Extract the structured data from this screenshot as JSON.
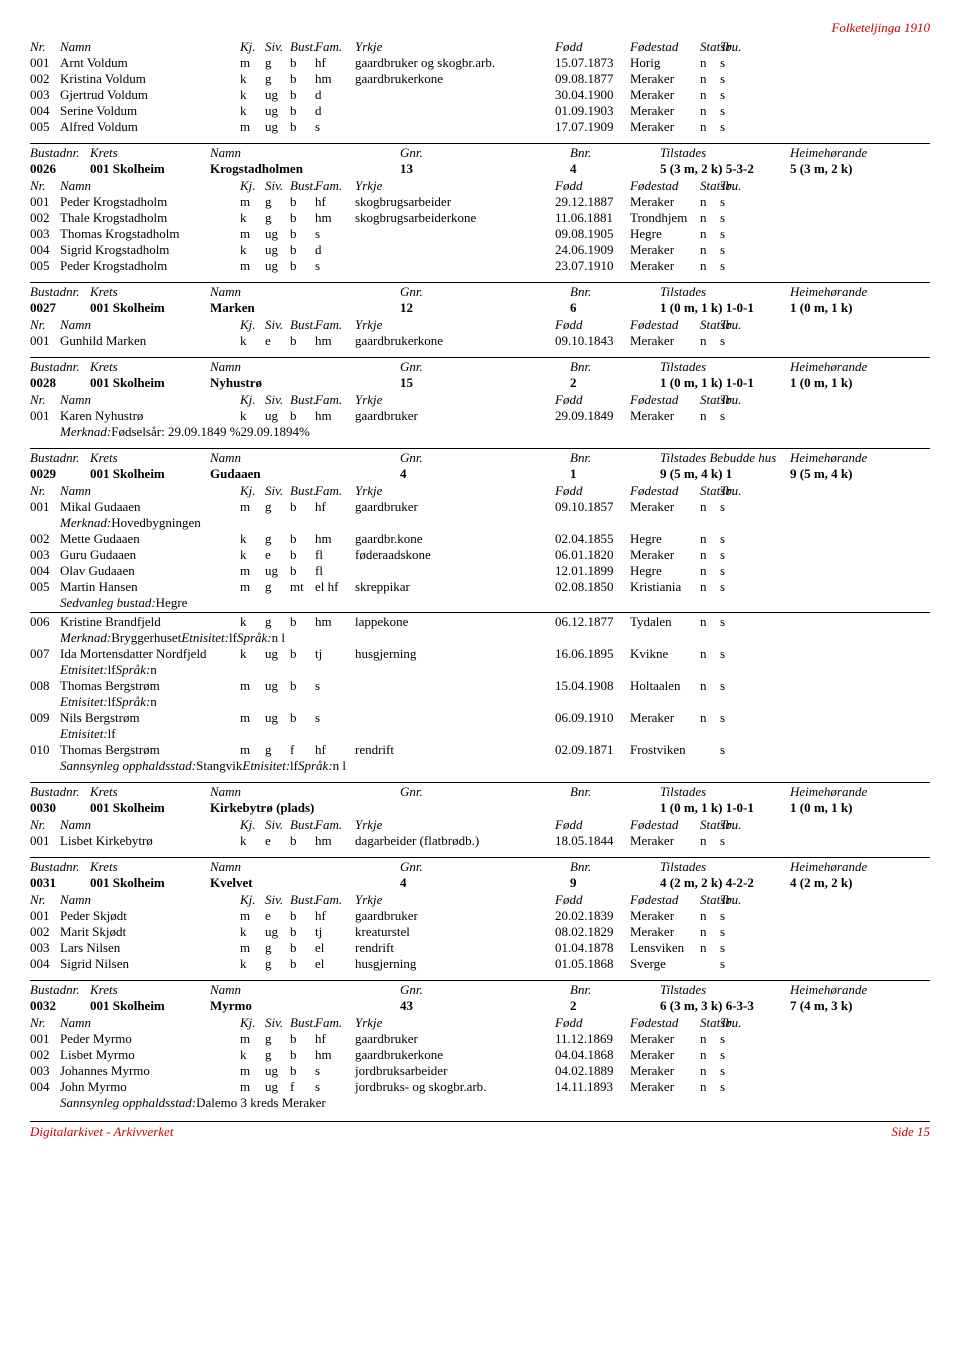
{
  "header_right": "Folketeljinga 1910",
  "footer_left": "Digitalarkivet - Arkivverket",
  "footer_right": "Side 15",
  "person_header": {
    "nr": "Nr.",
    "namn": "Namn",
    "kj": "Kj.",
    "siv": "Siv.",
    "bust": "Bust.",
    "fam": "Fam.",
    "yrkje": "Yrkje",
    "fodd": "Fødd",
    "fodestad": "Fødestad",
    "statsb": "Statsb.",
    "tru": "Tru."
  },
  "bustad_header": {
    "bust": "Bustadnr.",
    "krets": "Krets",
    "namn": "Namn",
    "gnr": "Gnr.",
    "bnr": "Bnr.",
    "til": "Tilstades",
    "til_extra": "Tilstades Bebudde hus",
    "heim": "Heimehørande"
  },
  "top_rows": [
    {
      "nr": "001",
      "namn": "Arnt Voldum",
      "kj": "m",
      "siv": "g",
      "bust": "b",
      "fam": "hf",
      "yrkje": "gaardbruker og skogbr.arb.",
      "fodd": "15.07.1873",
      "fodestad": "Horig",
      "statsb": "n",
      "tru": "s"
    },
    {
      "nr": "002",
      "namn": "Kristina Voldum",
      "kj": "k",
      "siv": "g",
      "bust": "b",
      "fam": "hm",
      "yrkje": "gaardbrukerkone",
      "fodd": "09.08.1877",
      "fodestad": "Meraker",
      "statsb": "n",
      "tru": "s"
    },
    {
      "nr": "003",
      "namn": "Gjertrud Voldum",
      "kj": "k",
      "siv": "ug",
      "bust": "b",
      "fam": "d",
      "yrkje": "",
      "fodd": "30.04.1900",
      "fodestad": "Meraker",
      "statsb": "n",
      "tru": "s"
    },
    {
      "nr": "004",
      "namn": "Serine Voldum",
      "kj": "k",
      "siv": "ug",
      "bust": "b",
      "fam": "d",
      "yrkje": "",
      "fodd": "01.09.1903",
      "fodestad": "Meraker",
      "statsb": "n",
      "tru": "s"
    },
    {
      "nr": "005",
      "namn": "Alfred Voldum",
      "kj": "m",
      "siv": "ug",
      "bust": "b",
      "fam": "s",
      "yrkje": "",
      "fodd": "17.07.1909",
      "fodestad": "Meraker",
      "statsb": "n",
      "tru": "s"
    }
  ],
  "sections": [
    {
      "bustad": {
        "nr": "0026",
        "krets": "001 Skolheim",
        "namn": "Krogstadholmen",
        "gnr": "13",
        "bnr": "4",
        "til": "5 (3 m, 2 k) 5-3-2",
        "heim": "5 (3 m, 2 k)"
      },
      "rows": [
        {
          "nr": "001",
          "namn": "Peder Krogstadholm",
          "kj": "m",
          "siv": "g",
          "bust": "b",
          "fam": "hf",
          "yrkje": "skogbrugsarbeider",
          "fodd": "29.12.1887",
          "fodestad": "Meraker",
          "statsb": "n",
          "tru": "s"
        },
        {
          "nr": "002",
          "namn": "Thale Krogstadholm",
          "kj": "k",
          "siv": "g",
          "bust": "b",
          "fam": "hm",
          "yrkje": "skogbrugsarbeiderkone",
          "fodd": "11.06.1881",
          "fodestad": "Trondhjem",
          "statsb": "n",
          "tru": "s"
        },
        {
          "nr": "003",
          "namn": "Thomas Krogstadholm",
          "kj": "m",
          "siv": "ug",
          "bust": "b",
          "fam": "s",
          "yrkje": "",
          "fodd": "09.08.1905",
          "fodestad": "Hegre",
          "statsb": "n",
          "tru": "s"
        },
        {
          "nr": "004",
          "namn": "Sigrid Krogstadholm",
          "kj": "k",
          "siv": "ug",
          "bust": "b",
          "fam": "d",
          "yrkje": "",
          "fodd": "24.06.1909",
          "fodestad": "Meraker",
          "statsb": "n",
          "tru": "s"
        },
        {
          "nr": "005",
          "namn": "Peder Krogstadholm",
          "kj": "m",
          "siv": "ug",
          "bust": "b",
          "fam": "s",
          "yrkje": "",
          "fodd": "23.07.1910",
          "fodestad": "Meraker",
          "statsb": "n",
          "tru": "s"
        }
      ]
    },
    {
      "bustad": {
        "nr": "0027",
        "krets": "001 Skolheim",
        "namn": "Marken",
        "gnr": "12",
        "bnr": "6",
        "til": "1 (0 m, 1 k) 1-0-1",
        "heim": "1 (0 m, 1 k)"
      },
      "rows": [
        {
          "nr": "001",
          "namn": "Gunhild Marken",
          "kj": "k",
          "siv": "e",
          "bust": "b",
          "fam": "hm",
          "yrkje": "gaardbrukerkone",
          "fodd": "09.10.1843",
          "fodestad": "Meraker",
          "statsb": "n",
          "tru": "s"
        }
      ]
    },
    {
      "bustad": {
        "nr": "0028",
        "krets": "001 Skolheim",
        "namn": "Nyhustrø",
        "gnr": "15",
        "bnr": "2",
        "til": "1 (0 m, 1 k) 1-0-1",
        "heim": "1 (0 m, 1 k)"
      },
      "rows": [
        {
          "nr": "001",
          "namn": "Karen Nyhustrø",
          "kj": "k",
          "siv": "ug",
          "bust": "b",
          "fam": "hm",
          "yrkje": "gaardbruker",
          "fodd": "29.09.1849",
          "fodestad": "Meraker",
          "statsb": "n",
          "tru": "s",
          "note": {
            "lbl": "Merknad:",
            "txt": " Fødselsår: 29.09.1849 %29.09.1894%"
          }
        }
      ]
    },
    {
      "extra_header": true,
      "bustad": {
        "nr": "0029",
        "krets": "001 Skolheim",
        "namn": "Gudaaen",
        "gnr": "4",
        "bnr": "1",
        "til": "9 (5 m, 4 k) 1",
        "heim": "9 (5 m, 4 k)"
      },
      "rows": [
        {
          "nr": "001",
          "namn": "Mikal Gudaaen",
          "kj": "m",
          "siv": "g",
          "bust": "b",
          "fam": "hf",
          "yrkje": "gaardbruker",
          "fodd": "09.10.1857",
          "fodestad": "Meraker",
          "statsb": "n",
          "tru": "s",
          "note": {
            "lbl": "Merknad:",
            "txt": " Hovedbygningen"
          }
        },
        {
          "nr": "002",
          "namn": "Mette Gudaaen",
          "kj": "k",
          "siv": "g",
          "bust": "b",
          "fam": "hm",
          "yrkje": "gaardbr.kone",
          "fodd": "02.04.1855",
          "fodestad": "Hegre",
          "statsb": "n",
          "tru": "s"
        },
        {
          "nr": "003",
          "namn": "Guru Gudaaen",
          "kj": "k",
          "siv": "e",
          "bust": "b",
          "fam": "fl",
          "yrkje": "føderaadskone",
          "fodd": "06.01.1820",
          "fodestad": "Meraker",
          "statsb": "n",
          "tru": "s"
        },
        {
          "nr": "004",
          "namn": "Olav Gudaaen",
          "kj": "m",
          "siv": "ug",
          "bust": "b",
          "fam": "fl",
          "yrkje": "",
          "fodd": "12.01.1899",
          "fodestad": "Hegre",
          "statsb": "n",
          "tru": "s"
        },
        {
          "nr": "005",
          "namn": "Martin Hansen",
          "kj": "m",
          "siv": "g",
          "bust": "mt",
          "fam": "el hf",
          "yrkje": "skreppikar",
          "fodd": "02.08.1850",
          "fodestad": "Kristiania",
          "statsb": "n",
          "tru": "s",
          "note": {
            "lbl": "Sedvanleg bustad:",
            "txt": "  Hegre"
          },
          "sep_after": true
        },
        {
          "nr": "006",
          "namn": "Kristine Brandfjeld",
          "kj": "k",
          "siv": "g",
          "bust": "b",
          "fam": "hm",
          "yrkje": "lappekone",
          "fodd": "06.12.1877",
          "fodestad": "Tydalen",
          "statsb": "n",
          "tru": "s",
          "note": {
            "lbl": "Merknad:",
            "txt": " Bryggerhuset ",
            "lbl2": "Etnisitet:",
            "txt2": "  lf ",
            "lbl3": "Språk:",
            "txt3": "  n l"
          }
        },
        {
          "nr": "007",
          "namn": "Ida Mortensdatter Nordfjeld",
          "kj": "k",
          "siv": "ug",
          "bust": "b",
          "fam": "tj",
          "yrkje": "husgjerning",
          "fodd": "16.06.1895",
          "fodestad": "Kvikne",
          "statsb": "n",
          "tru": "s",
          "note": {
            "lbl": "Etnisitet:",
            "txt": "  lf ",
            "lbl2": "Språk:",
            "txt2": "  n"
          }
        },
        {
          "nr": "008",
          "namn": "Thomas Bergstrøm",
          "kj": "m",
          "siv": "ug",
          "bust": "b",
          "fam": "s",
          "yrkje": "",
          "fodd": "15.04.1908",
          "fodestad": "Holtaalen",
          "statsb": "n",
          "tru": "s",
          "note": {
            "lbl": "Etnisitet:",
            "txt": "  lf ",
            "lbl2": "Språk:",
            "txt2": "  n"
          }
        },
        {
          "nr": "009",
          "namn": "Nils Bergstrøm",
          "kj": "m",
          "siv": "ug",
          "bust": "b",
          "fam": "s",
          "yrkje": "",
          "fodd": "06.09.1910",
          "fodestad": "Meraker",
          "statsb": "n",
          "tru": "s",
          "note": {
            "lbl": "Etnisitet:",
            "txt": "  lf"
          }
        },
        {
          "nr": "010",
          "namn": "Thomas Bergstrøm",
          "kj": "m",
          "siv": "g",
          "bust": "f",
          "fam": "hf",
          "yrkje": "rendrift",
          "fodd": "02.09.1871",
          "fodestad": "Frostviken",
          "statsb": "",
          "tru": "s",
          "note": {
            "lbl": "Sannsynleg opphaldsstad:",
            "txt": " Stangvik ",
            "lbl2": "Etnisitet:",
            "txt2": "  lf ",
            "lbl3": "Språk:",
            "txt3": "  n l"
          }
        }
      ]
    },
    {
      "bustad": {
        "nr": "0030",
        "krets": "001 Skolheim",
        "namn": "Kirkebytrø (plads)",
        "gnr": "",
        "bnr": "",
        "til": "1 (0 m, 1 k) 1-0-1",
        "heim": "1 (0 m, 1 k)"
      },
      "rows": [
        {
          "nr": "001",
          "namn": "Lisbet Kirkebytrø",
          "kj": "k",
          "siv": "e",
          "bust": "b",
          "fam": "hm",
          "yrkje": "dagarbeider (flatbrødb.)",
          "fodd": "18.05.1844",
          "fodestad": "Meraker",
          "statsb": "n",
          "tru": "s"
        }
      ]
    },
    {
      "bustad": {
        "nr": "0031",
        "krets": "001 Skolheim",
        "namn": "Kvelvet",
        "gnr": "4",
        "bnr": "9",
        "til": "4 (2 m, 2 k) 4-2-2",
        "heim": "4 (2 m, 2 k)"
      },
      "rows": [
        {
          "nr": "001",
          "namn": "Peder Skjødt",
          "kj": "m",
          "siv": "e",
          "bust": "b",
          "fam": "hf",
          "yrkje": "gaardbruker",
          "fodd": "20.02.1839",
          "fodestad": "Meraker",
          "statsb": "n",
          "tru": "s"
        },
        {
          "nr": "002",
          "namn": "Marit Skjødt",
          "kj": "k",
          "siv": "ug",
          "bust": "b",
          "fam": "tj",
          "yrkje": "kreaturstel",
          "fodd": "08.02.1829",
          "fodestad": "Meraker",
          "statsb": "n",
          "tru": "s"
        },
        {
          "nr": "003",
          "namn": "Lars Nilsen",
          "kj": "m",
          "siv": "g",
          "bust": "b",
          "fam": "el",
          "yrkje": "rendrift",
          "fodd": "01.04.1878",
          "fodestad": "Lensviken",
          "statsb": "n",
          "tru": "s"
        },
        {
          "nr": "004",
          "namn": "Sigrid Nilsen",
          "kj": "k",
          "siv": "g",
          "bust": "b",
          "fam": "el",
          "yrkje": "husgjerning",
          "fodd": "01.05.1868",
          "fodestad": "Sverge",
          "statsb": "",
          "tru": "s"
        }
      ]
    },
    {
      "bustad": {
        "nr": "0032",
        "krets": "001 Skolheim",
        "namn": "Myrmo",
        "gnr": "43",
        "bnr": "2",
        "til": "6 (3 m, 3 k) 6-3-3",
        "heim": "7 (4 m, 3 k)"
      },
      "rows": [
        {
          "nr": "001",
          "namn": "Peder Myrmo",
          "kj": "m",
          "siv": "g",
          "bust": "b",
          "fam": "hf",
          "yrkje": "gaardbruker",
          "fodd": "11.12.1869",
          "fodestad": "Meraker",
          "statsb": "n",
          "tru": "s"
        },
        {
          "nr": "002",
          "namn": "Lisbet Myrmo",
          "kj": "k",
          "siv": "g",
          "bust": "b",
          "fam": "hm",
          "yrkje": "gaardbrukerkone",
          "fodd": "04.04.1868",
          "fodestad": "Meraker",
          "statsb": "n",
          "tru": "s"
        },
        {
          "nr": "003",
          "namn": "Johannes Myrmo",
          "kj": "m",
          "siv": "ug",
          "bust": "b",
          "fam": "s",
          "yrkje": "jordbruksarbeider",
          "fodd": "04.02.1889",
          "fodestad": "Meraker",
          "statsb": "n",
          "tru": "s"
        },
        {
          "nr": "004",
          "namn": "John Myrmo",
          "kj": "m",
          "siv": "ug",
          "bust": "f",
          "fam": "s",
          "yrkje": "jordbruks- og skogbr.arb.",
          "fodd": "14.11.1893",
          "fodestad": "Meraker",
          "statsb": "n",
          "tru": "s",
          "note": {
            "lbl": "Sannsynleg opphaldsstad:",
            "txt": " Dalemo 3 kreds Meraker"
          }
        }
      ]
    }
  ]
}
